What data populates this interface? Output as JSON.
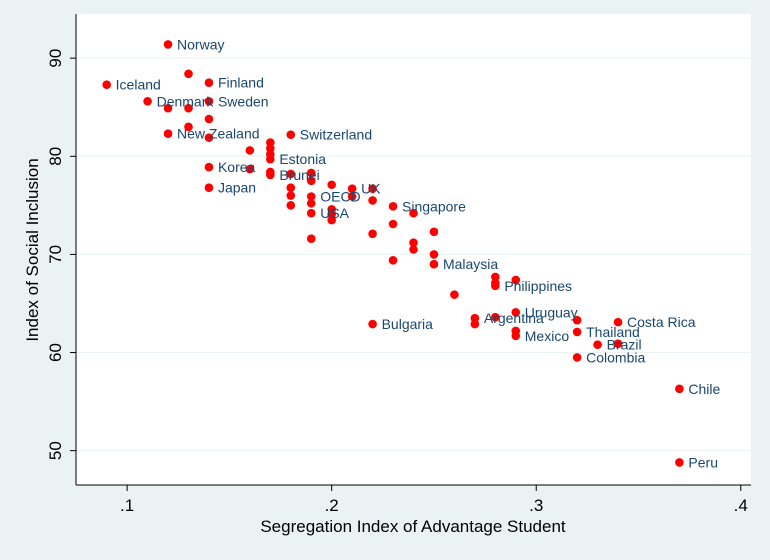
{
  "chart_data": {
    "type": "scatter",
    "xlabel": "Segregation Index of Advantage Student",
    "ylabel": "Index of Social Inclusion",
    "xlim": [
      0.075,
      0.405
    ],
    "ylim": [
      46.5,
      94.5
    ],
    "xticks": [
      {
        "value": 0.1,
        "label": ".1"
      },
      {
        "value": 0.2,
        "label": ".2"
      },
      {
        "value": 0.3,
        "label": ".3"
      },
      {
        "value": 0.4,
        "label": ".4"
      }
    ],
    "yticks": [
      {
        "value": 50,
        "label": "50"
      },
      {
        "value": 60,
        "label": "60"
      },
      {
        "value": 70,
        "label": "70"
      },
      {
        "value": 80,
        "label": "80"
      },
      {
        "value": 90,
        "label": "90"
      }
    ],
    "grid": "horizontal",
    "marker_color": "#ff0000",
    "label_color": "#1a476f",
    "points": [
      {
        "x": 0.12,
        "y": 91.4,
        "label": "Norway"
      },
      {
        "x": 0.09,
        "y": 87.3,
        "label": "Iceland"
      },
      {
        "x": 0.14,
        "y": 87.5,
        "label": "Finland"
      },
      {
        "x": 0.11,
        "y": 85.6,
        "label": "Denmark"
      },
      {
        "x": 0.14,
        "y": 85.6,
        "label": "Sweden"
      },
      {
        "x": 0.12,
        "y": 82.3,
        "label": "New Zealand"
      },
      {
        "x": 0.18,
        "y": 82.2,
        "label": "Switzerland"
      },
      {
        "x": 0.17,
        "y": 79.7,
        "label": "Estonia"
      },
      {
        "x": 0.14,
        "y": 78.9,
        "label": "Korea"
      },
      {
        "x": 0.17,
        "y": 78.1,
        "label": "Brunei"
      },
      {
        "x": 0.14,
        "y": 76.8,
        "label": "Japan"
      },
      {
        "x": 0.19,
        "y": 75.9,
        "label": "OECD"
      },
      {
        "x": 0.21,
        "y": 76.7,
        "label": "UK"
      },
      {
        "x": 0.19,
        "y": 74.2,
        "label": "USA"
      },
      {
        "x": 0.23,
        "y": 74.9,
        "label": "Singapore"
      },
      {
        "x": 0.25,
        "y": 69.0,
        "label": "Malaysia"
      },
      {
        "x": 0.28,
        "y": 66.8,
        "label": "Philippines"
      },
      {
        "x": 0.29,
        "y": 64.1,
        "label": "Uruguay"
      },
      {
        "x": 0.27,
        "y": 63.5,
        "label": "Argentina"
      },
      {
        "x": 0.22,
        "y": 62.9,
        "label": "Bulgaria"
      },
      {
        "x": 0.34,
        "y": 63.1,
        "label": "Costa Rica"
      },
      {
        "x": 0.32,
        "y": 62.1,
        "label": "Thailand"
      },
      {
        "x": 0.29,
        "y": 61.7,
        "label": "Mexico"
      },
      {
        "x": 0.33,
        "y": 60.8,
        "label": "Brazil"
      },
      {
        "x": 0.32,
        "y": 59.5,
        "label": "Colombia"
      },
      {
        "x": 0.37,
        "y": 56.3,
        "label": "Chile"
      },
      {
        "x": 0.37,
        "y": 48.8,
        "label": "Peru"
      },
      {
        "x": 0.13,
        "y": 88.4
      },
      {
        "x": 0.12,
        "y": 84.9
      },
      {
        "x": 0.13,
        "y": 84.9
      },
      {
        "x": 0.14,
        "y": 83.8
      },
      {
        "x": 0.13,
        "y": 83.0
      },
      {
        "x": 0.14,
        "y": 81.9
      },
      {
        "x": 0.17,
        "y": 81.4
      },
      {
        "x": 0.17,
        "y": 80.8
      },
      {
        "x": 0.16,
        "y": 80.6
      },
      {
        "x": 0.17,
        "y": 80.2
      },
      {
        "x": 0.16,
        "y": 78.7
      },
      {
        "x": 0.17,
        "y": 78.4
      },
      {
        "x": 0.18,
        "y": 78.2
      },
      {
        "x": 0.19,
        "y": 78.3
      },
      {
        "x": 0.19,
        "y": 77.5
      },
      {
        "x": 0.2,
        "y": 77.1
      },
      {
        "x": 0.18,
        "y": 76.8
      },
      {
        "x": 0.18,
        "y": 76.0
      },
      {
        "x": 0.22,
        "y": 76.7
      },
      {
        "x": 0.21,
        "y": 75.9
      },
      {
        "x": 0.22,
        "y": 75.5
      },
      {
        "x": 0.19,
        "y": 75.2
      },
      {
        "x": 0.18,
        "y": 75.0
      },
      {
        "x": 0.2,
        "y": 74.6
      },
      {
        "x": 0.2,
        "y": 74.1
      },
      {
        "x": 0.24,
        "y": 74.2
      },
      {
        "x": 0.2,
        "y": 73.5
      },
      {
        "x": 0.23,
        "y": 73.1
      },
      {
        "x": 0.25,
        "y": 72.3
      },
      {
        "x": 0.22,
        "y": 72.1
      },
      {
        "x": 0.19,
        "y": 71.6
      },
      {
        "x": 0.24,
        "y": 71.2
      },
      {
        "x": 0.24,
        "y": 70.5
      },
      {
        "x": 0.25,
        "y": 70.0
      },
      {
        "x": 0.23,
        "y": 69.4
      },
      {
        "x": 0.28,
        "y": 67.7
      },
      {
        "x": 0.29,
        "y": 67.4
      },
      {
        "x": 0.28,
        "y": 67.1
      },
      {
        "x": 0.26,
        "y": 65.9
      },
      {
        "x": 0.27,
        "y": 62.9
      },
      {
        "x": 0.28,
        "y": 63.6
      },
      {
        "x": 0.29,
        "y": 62.2
      },
      {
        "x": 0.32,
        "y": 63.3
      },
      {
        "x": 0.34,
        "y": 60.9
      }
    ]
  }
}
